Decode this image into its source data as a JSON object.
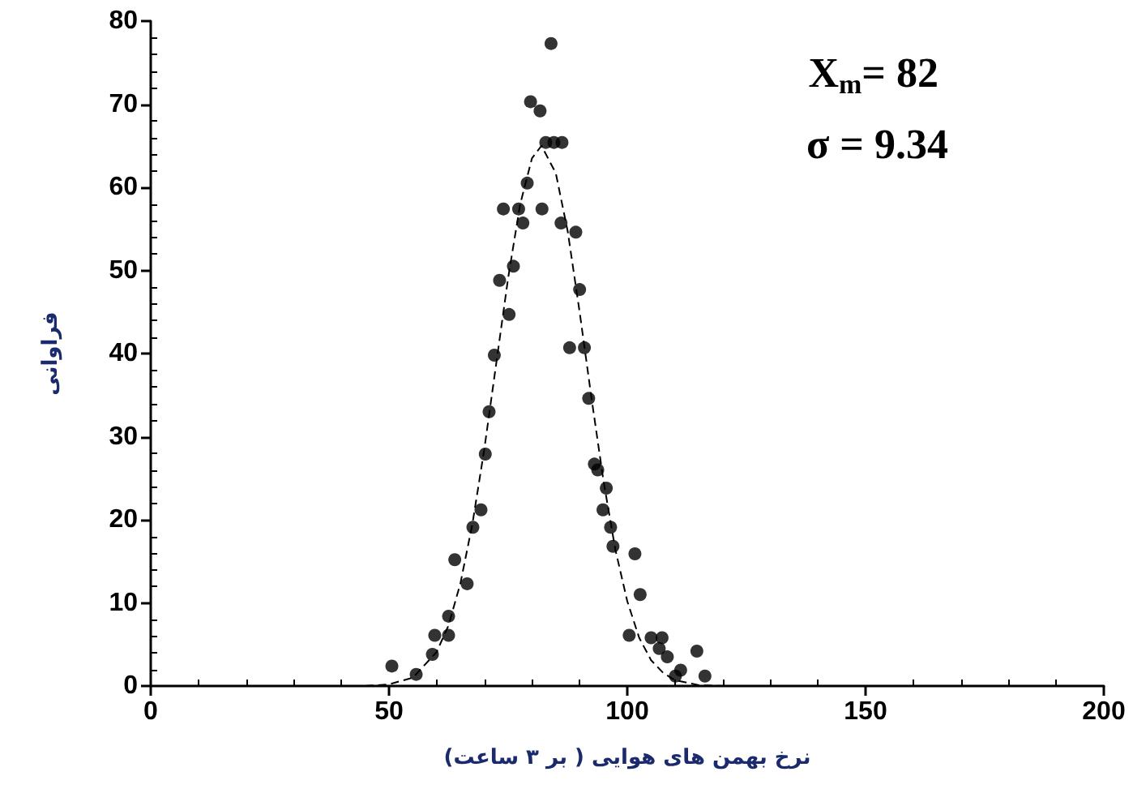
{
  "chart_data": {
    "type": "scatter",
    "xlabel": "نرخ بهمن های هوایی ( بر ۳ ساعت)",
    "ylabel": "فراوانی",
    "annotations": [
      "X$_{m}$= 82",
      "σ = 9.34"
    ],
    "xlim": [
      0,
      200
    ],
    "xticks": [
      0,
      50,
      100,
      150,
      200
    ],
    "ylim": [
      0,
      80
    ],
    "yticks": [
      0,
      10,
      20,
      30,
      40,
      50,
      60,
      70,
      80
    ],
    "grid": false,
    "series": [
      {
        "marker": "circle",
        "color": "#000000",
        "x": [
          84.0,
          79.7,
          81.7,
          82.9,
          84.6,
          86.3,
          79.0,
          74.0,
          77.2,
          78.1,
          82.1,
          86.1,
          89.2,
          76.1,
          73.2,
          90.0,
          75.2,
          72.1,
          87.9,
          91.0,
          91.9,
          71.0,
          70.2,
          93.1,
          93.8,
          95.6,
          69.3,
          67.6,
          94.9,
          96.5,
          97.0,
          101.6,
          63.8,
          66.4,
          102.7,
          62.5,
          59.6,
          62.5,
          100.4,
          105.0,
          107.3,
          59.1,
          106.7,
          108.4,
          50.6,
          55.7,
          110.1,
          114.6,
          111.2,
          116.3
        ],
        "values": [
          77.3,
          70.3,
          69.2,
          65.4,
          65.4,
          65.4,
          60.5,
          57.4,
          57.4,
          55.7,
          57.4,
          55.7,
          54.6,
          50.5,
          48.8,
          47.7,
          44.7,
          39.8,
          40.7,
          40.7,
          34.6,
          33.0,
          27.9,
          26.7,
          26.0,
          23.8,
          21.2,
          19.1,
          21.2,
          19.1,
          16.8,
          15.9,
          15.2,
          12.3,
          11.0,
          8.4,
          6.1,
          6.1,
          6.1,
          5.8,
          5.8,
          3.8,
          4.5,
          3.5,
          2.4,
          1.4,
          1.2,
          4.2,
          1.9,
          1.2
        ]
      },
      {
        "type": "line",
        "marker": "none",
        "line_style": "dashed",
        "color": "#000000",
        "x": [
          45,
          50,
          55,
          60,
          62.5,
          65,
          67.5,
          70,
          72.5,
          75,
          77.5,
          80,
          82,
          85,
          87.5,
          90,
          92.5,
          95,
          97.5,
          100,
          102.5,
          105,
          107.5,
          110,
          115,
          120
        ],
        "values": [
          0,
          0.2,
          1.0,
          4.1,
          7.3,
          12.4,
          19.5,
          28.5,
          38.8,
          49.1,
          57.9,
          63.5,
          65,
          61.7,
          54.7,
          45.0,
          34.6,
          24.7,
          16.4,
          10.2,
          5.8,
          3.1,
          1.6,
          0.7,
          0.1,
          0
        ]
      }
    ]
  }
}
